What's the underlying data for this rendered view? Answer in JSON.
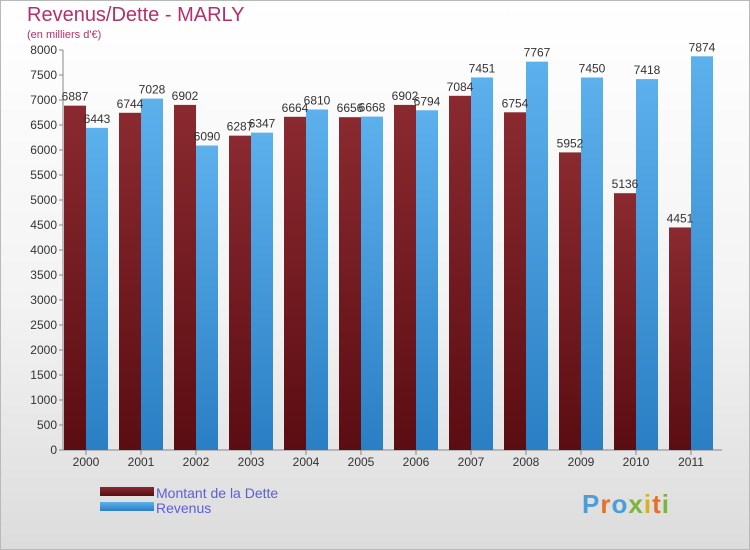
{
  "title": "Revenus/Dette - MARLY",
  "subtitle": "(en milliers d'€)",
  "logo": "Proxiti",
  "chart_data": {
    "type": "bar",
    "categories": [
      "2000",
      "2001",
      "2002",
      "2003",
      "2004",
      "2005",
      "2006",
      "2007",
      "2008",
      "2009",
      "2010",
      "2011"
    ],
    "series": [
      {
        "name": "Montant de la Dette",
        "values": [
          6887,
          6744,
          6902,
          6287,
          6664,
          6656,
          6902,
          7084,
          6754,
          5952,
          5136,
          4451
        ],
        "labels": [
          "6887",
          "6744",
          "6902",
          "6287",
          "6664",
          "6656",
          "6902",
          "7084",
          "6754",
          "5952",
          "5136",
          "4451"
        ],
        "color": "#7a1f24"
      },
      {
        "name": "Revenus",
        "values": [
          6443,
          7028,
          6090,
          6347,
          6810,
          6668,
          6794,
          7451,
          7767,
          7450,
          7418,
          7874
        ],
        "labels": [
          "6443",
          "7028",
          "6090",
          "6347",
          "6810",
          "6668",
          "6794",
          "7451",
          "7767",
          "7450",
          "7418",
          "7874"
        ],
        "color": "#4fa3e3"
      }
    ],
    "ylim": [
      0,
      8000
    ],
    "yticks": [
      0,
      500,
      1000,
      1500,
      2000,
      2500,
      3000,
      3500,
      4000,
      4500,
      5000,
      5500,
      6000,
      6500,
      7000,
      7500,
      8000
    ],
    "legend_position": "bottom-left",
    "grid": false
  },
  "colors": {
    "title": "#b4306a",
    "legend_text": "#5b5fd6",
    "dette_dark": "#5a0d12",
    "revenus_dark": "#2a7fc4"
  }
}
